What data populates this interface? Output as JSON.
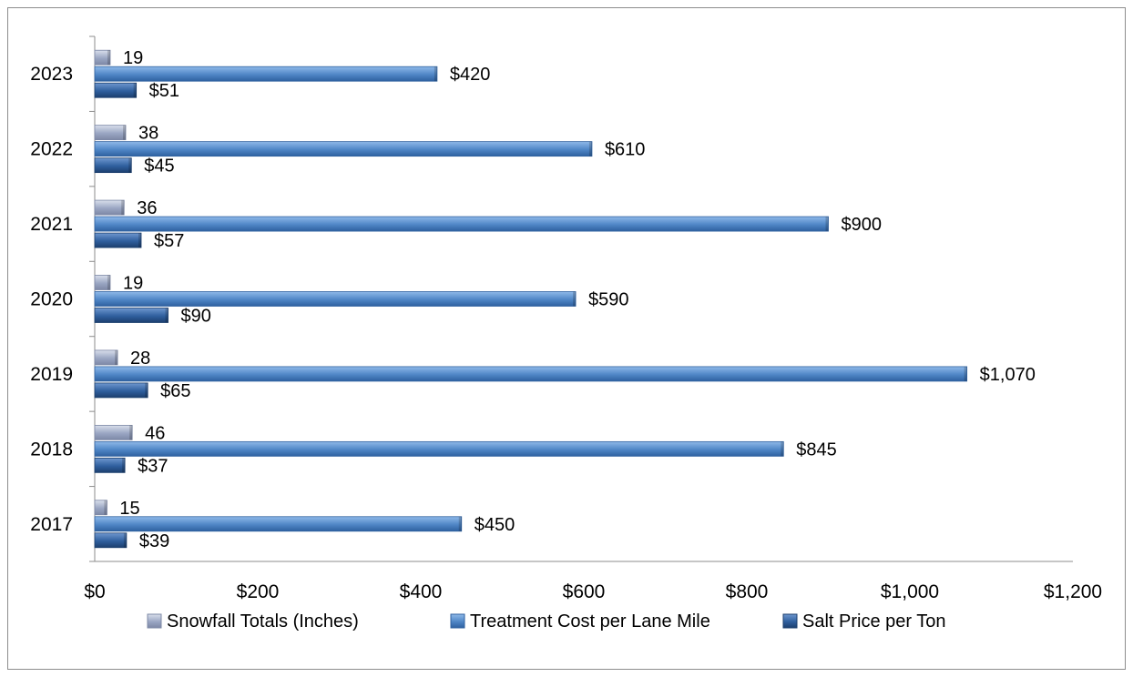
{
  "chart_data": {
    "type": "bar",
    "orientation": "horizontal",
    "categories": [
      "2017",
      "2018",
      "2019",
      "2020",
      "2021",
      "2022",
      "2023"
    ],
    "series": [
      {
        "name": "Snowfall Totals (Inches)",
        "values": [
          15,
          46,
          28,
          19,
          36,
          38,
          19
        ],
        "labels": [
          "15",
          "46",
          "28",
          "19",
          "36",
          "38",
          "19"
        ],
        "color": "#a9b4cf"
      },
      {
        "name": "Treatment Cost per Lane Mile",
        "values": [
          450,
          845,
          1070,
          590,
          900,
          610,
          420
        ],
        "labels": [
          "$450",
          "$845",
          "$1,070",
          "$590",
          "$900",
          "$610",
          "$420"
        ],
        "color": "#4f86c6"
      },
      {
        "name": "Salt Price per Ton",
        "values": [
          39,
          37,
          65,
          90,
          57,
          45,
          51
        ],
        "labels": [
          "$39",
          "$37",
          "$65",
          "$90",
          "$57",
          "$45",
          "$51"
        ],
        "color": "#2f5f9e"
      }
    ],
    "x_ticks": [
      0,
      200,
      400,
      600,
      800,
      1000,
      1200
    ],
    "x_tick_labels": [
      "$0",
      "$200",
      "$400",
      "$600",
      "$800",
      "$1,000",
      "$1,200"
    ],
    "xlim": [
      0,
      1200
    ],
    "grid": false,
    "legend_position": "bottom",
    "title": "",
    "xlabel": "",
    "ylabel": ""
  }
}
